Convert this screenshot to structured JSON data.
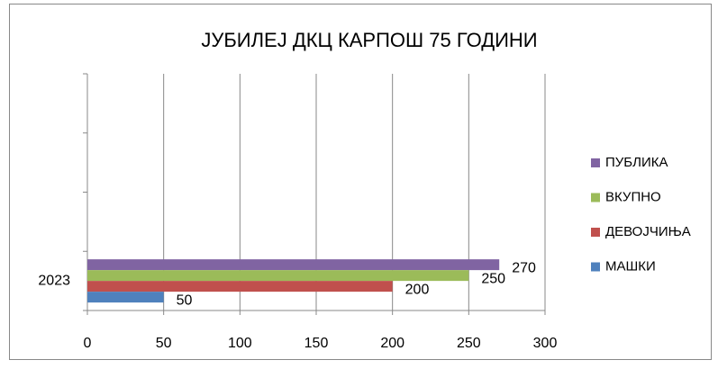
{
  "chart_data": {
    "type": "bar",
    "orientation": "horizontal",
    "title": "ЈУБИЛЕЈ ДКЦ КАРПОШ 75 ГОДИНИ",
    "categories": [
      "2023",
      null,
      null,
      null
    ],
    "series": [
      {
        "name": "ПУБЛИКА",
        "color": "#8064a2",
        "values": [
          270,
          null,
          null,
          null
        ]
      },
      {
        "name": "ВКУПНО",
        "color": "#9bbb59",
        "values": [
          250,
          null,
          null,
          null
        ]
      },
      {
        "name": "ДЕВОЈЧИЊА",
        "color": "#c0504d",
        "values": [
          200,
          null,
          null,
          null
        ]
      },
      {
        "name": "МАШКИ",
        "color": "#4f81bd",
        "values": [
          50,
          null,
          null,
          null
        ]
      }
    ],
    "xlim": [
      0,
      300
    ],
    "xticks": [
      0,
      50,
      100,
      150,
      200,
      250,
      300
    ],
    "grid": true,
    "legend": "right"
  }
}
